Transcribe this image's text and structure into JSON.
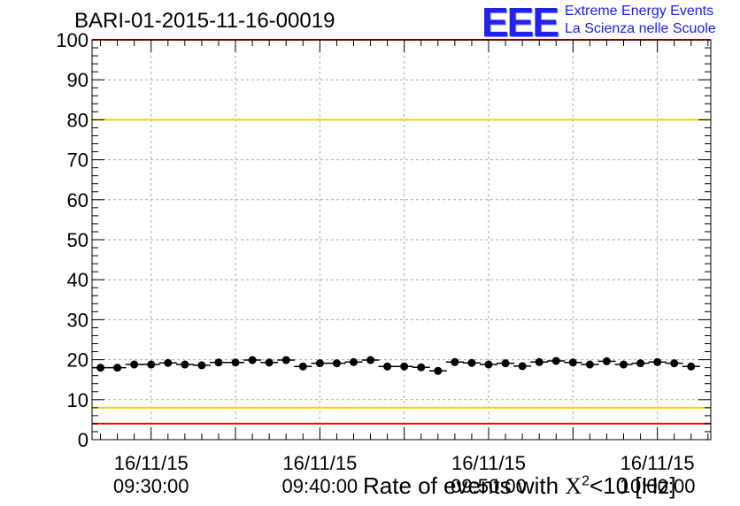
{
  "header": {
    "run_title": "BARI-01-2015-11-16-00019"
  },
  "logo": {
    "mark": "EEE",
    "line1": "Extreme Energy Events",
    "line2": "La Scienza nelle Scuole"
  },
  "chart_data": {
    "type": "scatter",
    "title": "BARI-01-2015-11-16-00019",
    "xlabel": "Rate of events with X^2<10 [Hz]",
    "xlabel_prefix": "Rate of events with ",
    "xlabel_symbol": "X",
    "xlabel_sup": "2",
    "xlabel_suffix": "<10 [Hz]",
    "ylabel": "",
    "ylim": [
      0,
      100
    ],
    "yticks": [
      0,
      10,
      20,
      30,
      40,
      50,
      60,
      70,
      80,
      90,
      100
    ],
    "xlim": [
      "16/11/15 09:26:30",
      "16/11/15 10:03:10"
    ],
    "xticks": [
      {
        "date": "16/11/15",
        "time": "09:30:00"
      },
      {
        "date": "16/11/15",
        "time": "09:40:00"
      },
      {
        "date": "16/11/15",
        "time": "09:50:00"
      },
      {
        "date": "16/11/15",
        "time": "10:00:00"
      }
    ],
    "grid": true,
    "reference_lines": [
      {
        "value": 100,
        "color": "#ff0000"
      },
      {
        "value": 80,
        "color": "#ffcc00"
      },
      {
        "value": 8,
        "color": "#ffcc00"
      },
      {
        "value": 4,
        "color": "#ff0000"
      }
    ],
    "series": [
      {
        "color": "#000000",
        "x": [
          "09:27:00",
          "09:28:00",
          "09:29:00",
          "09:30:00",
          "09:31:00",
          "09:32:00",
          "09:33:00",
          "09:34:00",
          "09:35:00",
          "09:36:00",
          "09:37:00",
          "09:38:00",
          "09:39:00",
          "09:40:00",
          "09:41:00",
          "09:42:00",
          "09:43:00",
          "09:44:00",
          "09:45:00",
          "09:46:00",
          "09:47:00",
          "09:48:00",
          "09:49:00",
          "09:50:00",
          "09:51:00",
          "09:52:00",
          "09:53:00",
          "09:54:00",
          "09:55:00",
          "09:56:00",
          "09:57:00",
          "09:58:00",
          "09:59:00",
          "10:00:00",
          "10:01:00",
          "10:02:00"
        ],
        "values": [
          18.0,
          18.0,
          18.8,
          18.8,
          19.2,
          18.8,
          18.6,
          19.3,
          19.3,
          19.9,
          19.3,
          19.9,
          18.3,
          19.1,
          19.1,
          19.4,
          19.9,
          18.3,
          18.3,
          18.1,
          17.2,
          19.4,
          19.2,
          18.8,
          19.1,
          18.4,
          19.4,
          19.7,
          19.3,
          18.8,
          19.6,
          18.8,
          19.1,
          19.4,
          19.1,
          18.3
        ]
      }
    ]
  }
}
